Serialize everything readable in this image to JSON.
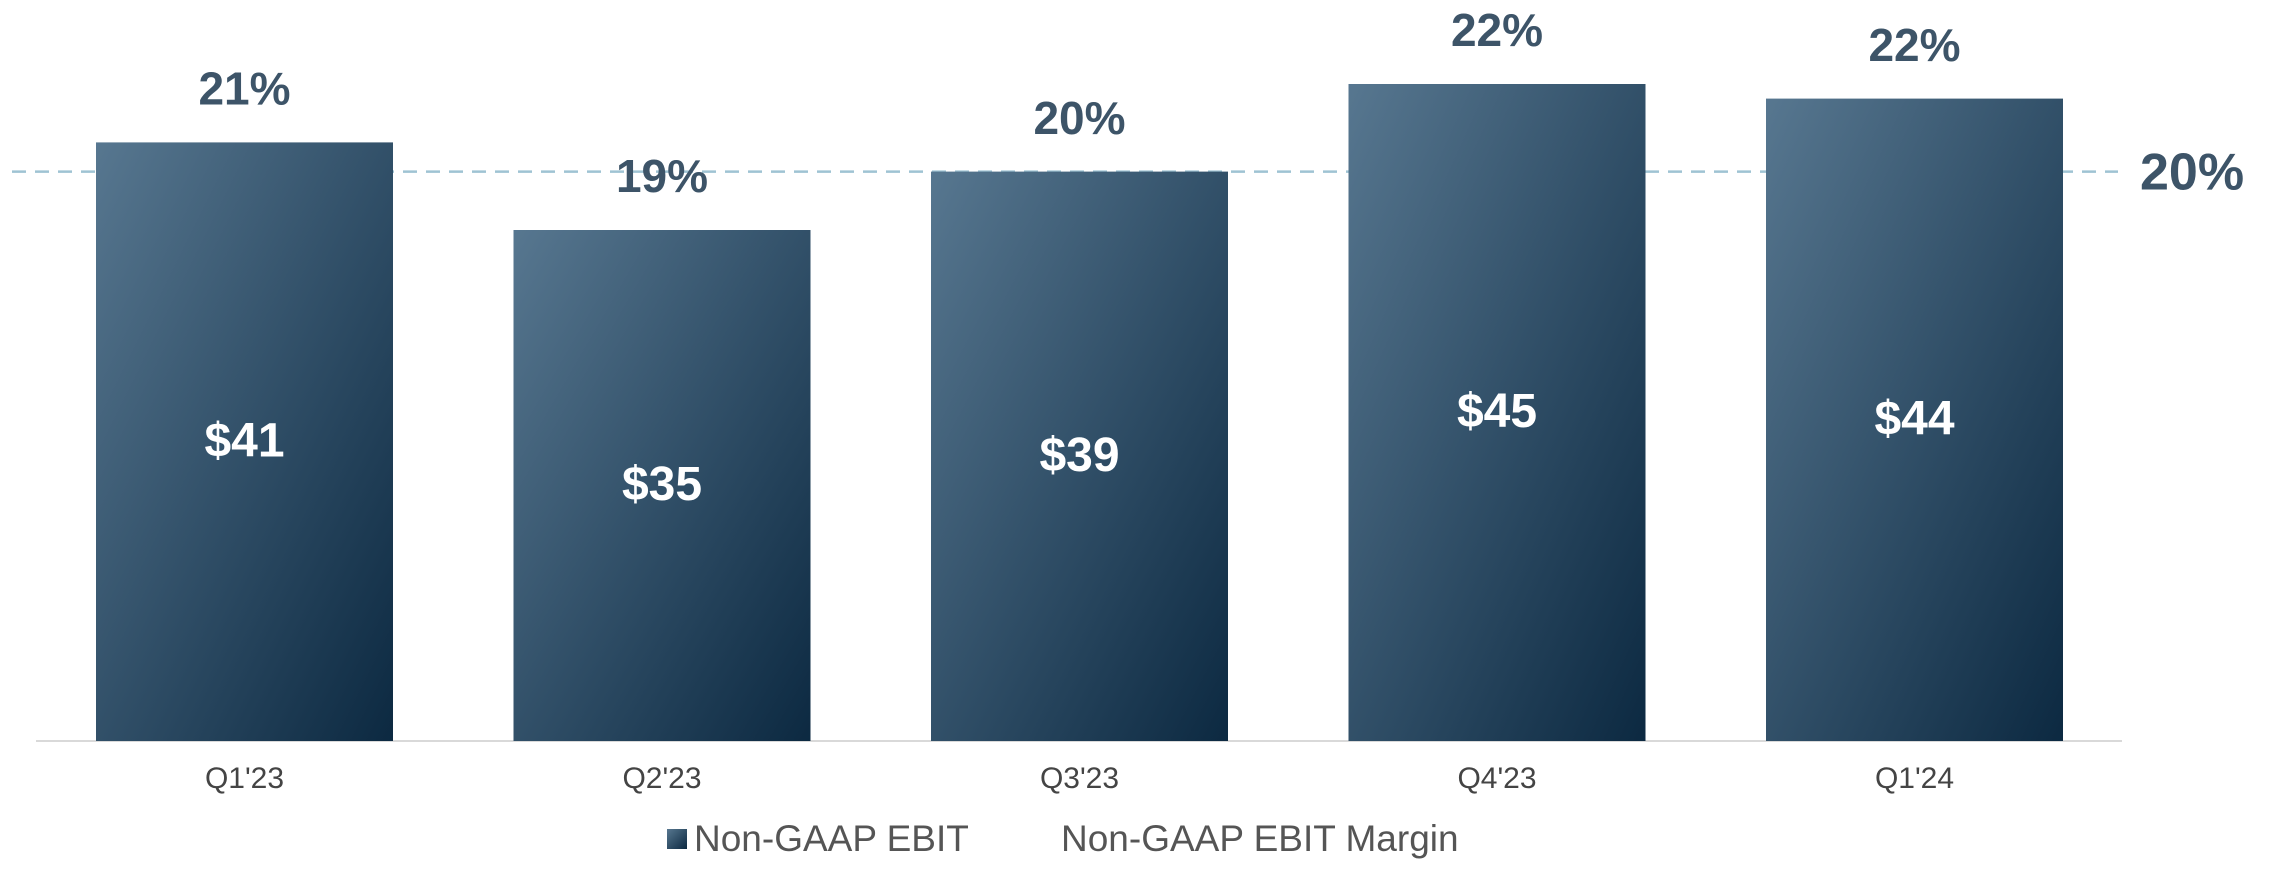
{
  "chart_data": {
    "type": "bar",
    "categories": [
      "Q1'23",
      "Q2'23",
      "Q3'23",
      "Q4'23",
      "Q1'24"
    ],
    "series": [
      {
        "name": "Non-GAAP EBIT",
        "color": "#1f3e57",
        "values": [
          41,
          35,
          39,
          45,
          44
        ],
        "value_labels": [
          "$41",
          "$35",
          "$39",
          "$45",
          "$44"
        ]
      },
      {
        "name": "Non-GAAP EBIT Margin",
        "values": [
          21,
          19,
          20,
          22,
          22
        ],
        "value_labels": [
          "21%",
          "19%",
          "20%",
          "22%",
          "22%"
        ]
      }
    ],
    "reference_line": {
      "value": 20,
      "label": "20%"
    }
  }
}
